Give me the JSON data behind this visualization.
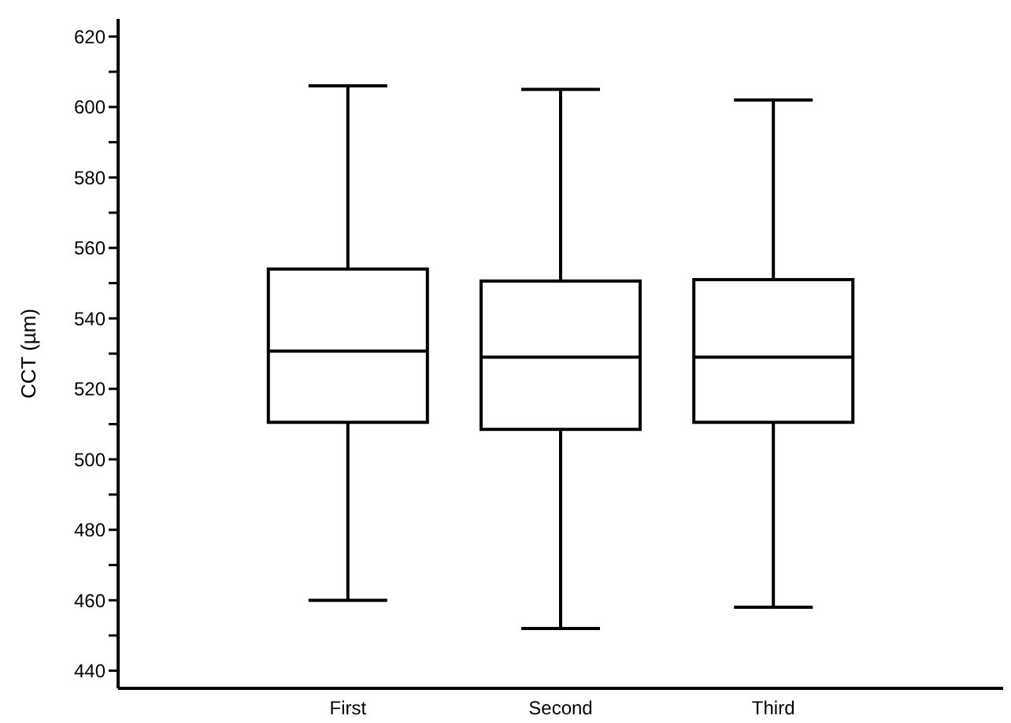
{
  "chart_data": {
    "type": "box",
    "ylabel": "CCT (µm)",
    "categories": [
      "First",
      "Second",
      "Third"
    ],
    "boxes": [
      {
        "low": 460,
        "q1": 510.5,
        "median": 530.7,
        "q3": 554,
        "high": 606
      },
      {
        "low": 452,
        "q1": 508.5,
        "median": 529,
        "q3": 550.6,
        "high": 605
      },
      {
        "low": 458,
        "q1": 510.5,
        "median": 529,
        "q3": 551,
        "high": 602
      }
    ],
    "ylim": [
      435,
      625
    ],
    "yticks": [
      440,
      {
        "value": 450,
        "label": null
      },
      460,
      {
        "value": 470,
        "label": null
      },
      480,
      {
        "value": 490,
        "label": null
      },
      500,
      {
        "value": 510,
        "label": null
      },
      520,
      {
        "value": 530,
        "label": null
      },
      540,
      {
        "value": 550,
        "label": null
      },
      560,
      {
        "value": 570,
        "label": null
      },
      580,
      {
        "value": 590,
        "label": null
      },
      600,
      {
        "value": 610,
        "label": null
      },
      620
    ]
  }
}
